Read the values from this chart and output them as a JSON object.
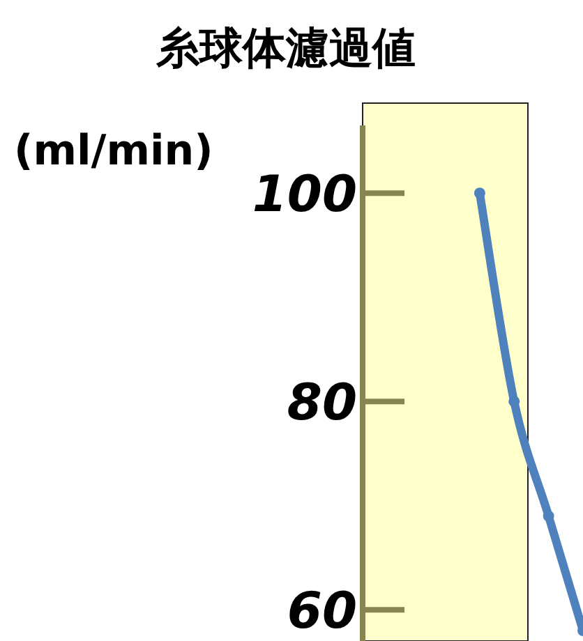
{
  "chart_data": {
    "type": "line",
    "title": "糸球体濾過値",
    "ylabel": "(ml/min)",
    "categories": [
      null,
      null,
      null,
      null
    ],
    "series": [
      {
        "color": "#4f81bd",
        "values": [
          100,
          80,
          69,
          58
        ]
      }
    ],
    "ylim": [
      57,
      106.5
    ],
    "yticks": [
      60,
      80,
      100
    ],
    "marker": "circle",
    "line_style": "solid",
    "grid": false
  }
}
